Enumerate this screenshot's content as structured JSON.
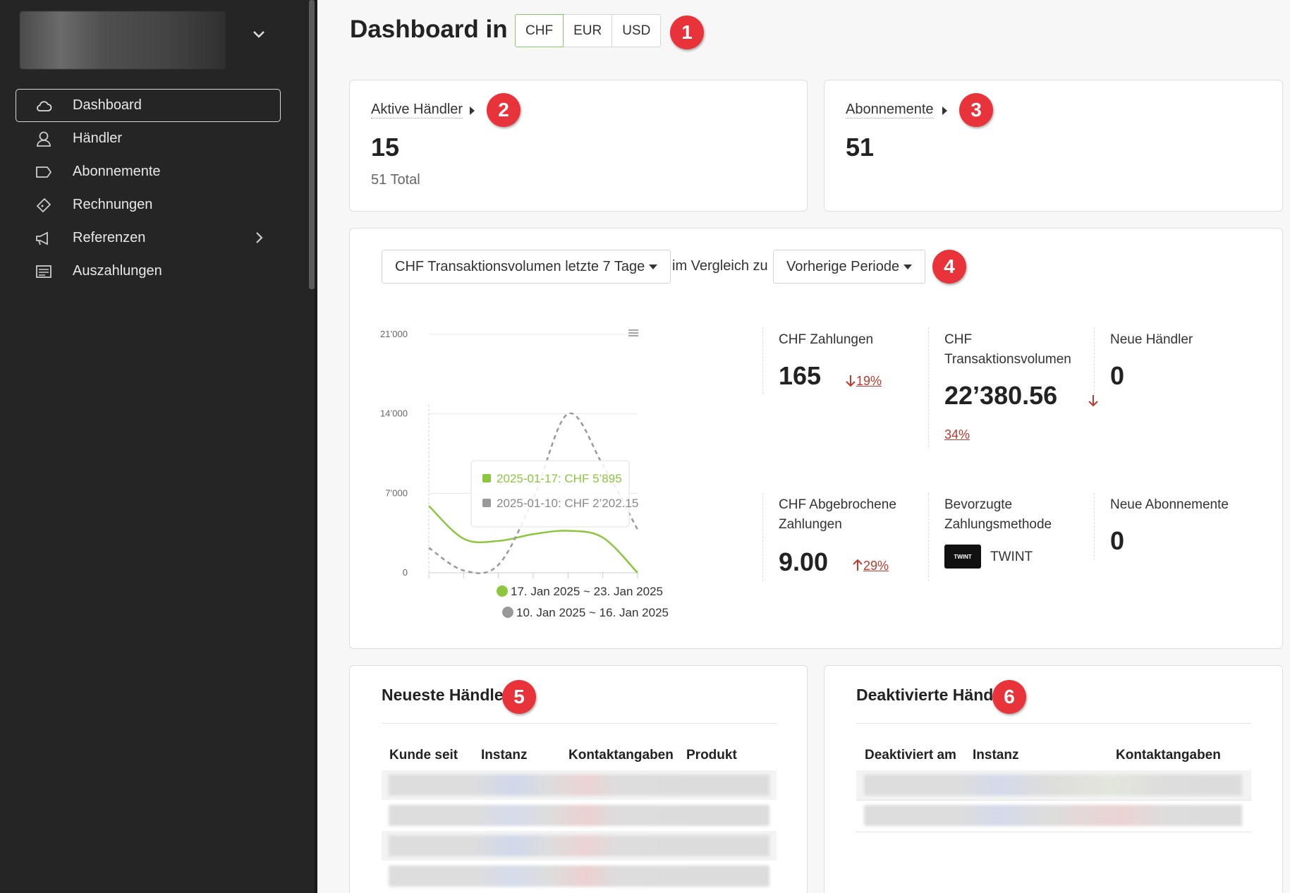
{
  "sidebar": {
    "items": [
      {
        "label": "Dashboard",
        "icon": "cloud-icon",
        "active": true
      },
      {
        "label": "Händler",
        "icon": "user-icon"
      },
      {
        "label": "Abonnemente",
        "icon": "tag-icon"
      },
      {
        "label": "Rechnungen",
        "icon": "ticket-icon"
      },
      {
        "label": "Referenzen",
        "icon": "megaphone-icon",
        "has_submenu": true
      },
      {
        "label": "Auszahlungen",
        "icon": "newspaper-icon"
      }
    ]
  },
  "header": {
    "title": "Dashboard in",
    "currencies": [
      "CHF",
      "EUR",
      "USD"
    ],
    "selected_currency": "CHF"
  },
  "badges": [
    "1",
    "2",
    "3",
    "4",
    "5",
    "6"
  ],
  "active_merchants": {
    "label": "Aktive Händler",
    "value": "15",
    "total": "51 Total"
  },
  "subscriptions": {
    "label": "Abonnemente",
    "value": "51"
  },
  "volume": {
    "metric_select": "CHF Transaktionsvolumen letzte 7 Tage",
    "compare_text": "im Vergleich zu",
    "compare_select": "Vorherige Periode",
    "stats": [
      {
        "label": "CHF Zahlungen",
        "value": "165",
        "delta": "19%",
        "direction": "down"
      },
      {
        "label": "CHF Transaktionsvolumen",
        "value": "22’380.56",
        "delta": "34%",
        "direction": "down"
      },
      {
        "label": "Neue Händler",
        "value": "0"
      },
      {
        "label": "CHF Abgebrochene Zahlungen",
        "value": "9.00",
        "delta": "29%",
        "direction": "up"
      },
      {
        "label": "Bevorzugte Zahlungsmethode",
        "value": "TWINT",
        "logo_text": "TWINT"
      },
      {
        "label": "Neue Abonnemente",
        "value": "0"
      }
    ]
  },
  "chart_data": {
    "type": "line",
    "ylim": [
      0,
      21000
    ],
    "yticks": [
      "21’000",
      "14’000",
      "7’000",
      "0"
    ],
    "ytick_values": [
      21000,
      14000,
      7000,
      0
    ],
    "x_points": 7,
    "series": [
      {
        "name": "17. Jan 2025 ~ 23. Jan 2025",
        "color": "#8cc63f",
        "style": "solid",
        "values": [
          5895,
          3000,
          2800,
          3400,
          3700,
          3100,
          0
        ]
      },
      {
        "name": "10. Jan 2025 ~ 16. Jan 2025",
        "color": "#999999",
        "style": "dashed",
        "values": [
          2202.15,
          200,
          700,
          6500,
          14000,
          9500,
          3800
        ]
      }
    ],
    "tooltip": [
      "2025-01-17: CHF 5’895",
      "2025-01-10: CHF 2’202.15"
    ],
    "legend_position": "bottom"
  },
  "newest_merchants": {
    "title": "Neueste Händler",
    "columns": [
      "Kunde seit",
      "Instanz",
      "Kontaktangaben",
      "Produkt"
    ]
  },
  "deactivated_merchants": {
    "title": "Deaktivierte Händler",
    "columns": [
      "Deaktiviert am",
      "Instanz",
      "Kontaktangaben"
    ]
  }
}
